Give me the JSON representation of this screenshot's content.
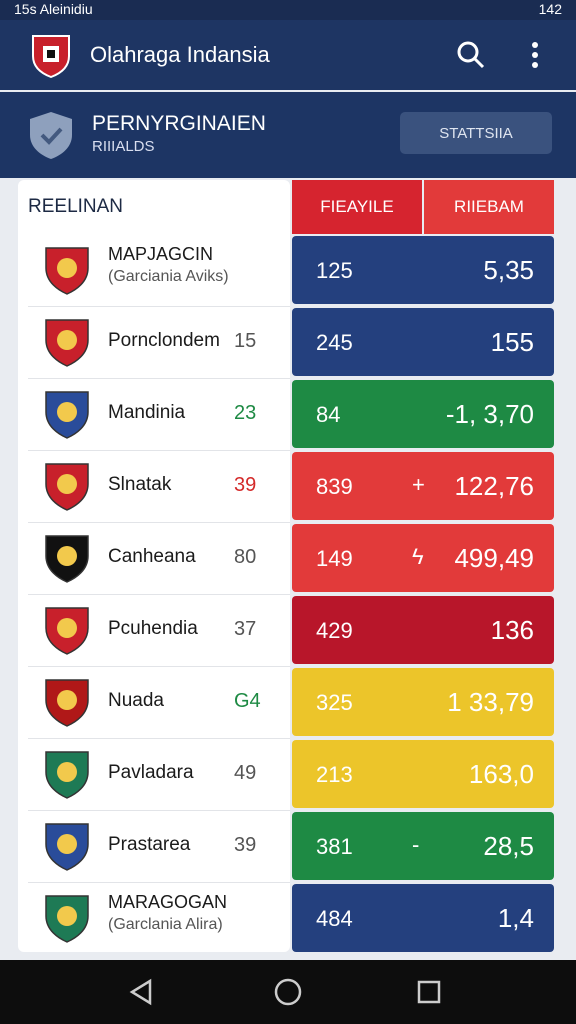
{
  "status_bar": {
    "left": "15s Aleinidiu",
    "right": "142"
  },
  "app_bar": {
    "title": "Olahraga Indansia"
  },
  "section": {
    "title": "PERNYRGINAIEN",
    "subtitle": "RIIIALDS",
    "button": "STATTSIIA"
  },
  "table": {
    "header": "REELINAN",
    "columns": [
      "FIEAYILE",
      "RIIEBAM"
    ],
    "rows": [
      {
        "name": "MAPJAGCIN",
        "sub": "(Garciania Aviks)",
        "col1": "125",
        "col2": "5,35",
        "color": "#24407e"
      },
      {
        "name": "Pornclondem",
        "num": "15",
        "num_color": "#555555",
        "col1": "245",
        "col2": "155",
        "color": "#24407e"
      },
      {
        "name": "Mandinia",
        "num": "23",
        "num_color": "#1e8a44",
        "col1": "84",
        "col2": "-1, 3,70",
        "color": "#1e8a44"
      },
      {
        "name": "Slnatak",
        "num": "39",
        "num_color": "#d42a2a",
        "col1": "839",
        "mark": "+",
        "col2": "122,76",
        "color": "#e23a3a"
      },
      {
        "name": "Canheana",
        "num": "80",
        "num_color": "#555555",
        "col1": "149",
        "mark": "ϟ",
        "col2": "499,49",
        "color": "#e23a3a"
      },
      {
        "name": "Pcuhendia",
        "num": "37",
        "num_color": "#555555",
        "col1": "429",
        "col2": "136",
        "color": "#b8162a"
      },
      {
        "name": "Nuada",
        "num": "G4",
        "num_color": "#1e8a44",
        "col1": "325",
        "col2": "1 33,79",
        "color": "#ecc52a"
      },
      {
        "name": "Pavladara",
        "num": "49",
        "num_color": "#555555",
        "col1": "213",
        "col2": "163,0",
        "color": "#ecc52a"
      },
      {
        "name": "Prastarea",
        "num": "39",
        "num_color": "#555555",
        "col1": "381",
        "mark": "-",
        "col2": "28,5",
        "color": "#1e8a44"
      },
      {
        "name": "MARAGOGAN",
        "sub": "(Garclania Alira)",
        "col1": "484",
        "col2": "1,4",
        "color": "#24407e"
      }
    ]
  }
}
